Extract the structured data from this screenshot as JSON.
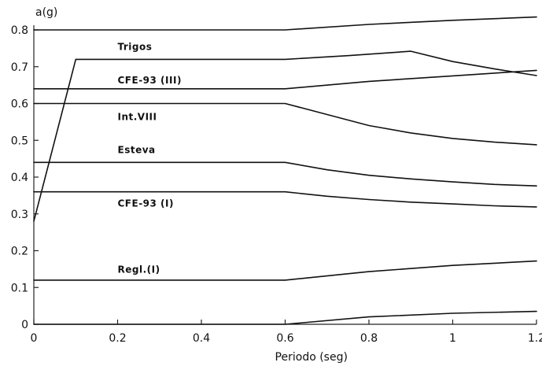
{
  "chart_data": {
    "type": "line",
    "xlabel": "Periodo (seg)",
    "ylabel": "a(g)",
    "xlim": [
      0,
      1.2
    ],
    "ylim": [
      0,
      0.8
    ],
    "xticks": [
      {
        "value": 0,
        "label": "0"
      },
      {
        "value": 0.2,
        "label": "0.2"
      },
      {
        "value": 0.4,
        "label": "0.4"
      },
      {
        "value": 0.6,
        "label": "0.6"
      },
      {
        "value": 0.8,
        "label": "0.8"
      },
      {
        "value": 1.0,
        "label": "1"
      },
      {
        "value": 1.2,
        "label": "1.2"
      }
    ],
    "yticks": [
      {
        "value": 0,
        "label": "0"
      },
      {
        "value": 0.1,
        "label": "0.1"
      },
      {
        "value": 0.2,
        "label": "0.2"
      },
      {
        "value": 0.3,
        "label": "0.3"
      },
      {
        "value": 0.4,
        "label": "0.4"
      },
      {
        "value": 0.5,
        "label": "0.5"
      },
      {
        "value": 0.6,
        "label": "0.6"
      },
      {
        "value": 0.7,
        "label": "0.7"
      },
      {
        "value": 0.8,
        "label": "0.8"
      }
    ],
    "grid": false,
    "legend": "none",
    "series": [
      {
        "key": "top",
        "x": [
          0,
          0.6,
          0.8,
          1.0,
          1.2
        ],
        "y": [
          0.8,
          0.8,
          0.815,
          0.826,
          0.835
        ]
      },
      {
        "key": "trigos",
        "name": "Trigos",
        "x": [
          0,
          0.1,
          0.6,
          0.75,
          0.9,
          1.0,
          1.1,
          1.2
        ],
        "y": [
          0.28,
          0.72,
          0.72,
          0.73,
          0.742,
          0.714,
          0.694,
          0.676
        ],
        "label_at": [
          0.2,
          0.745
        ]
      },
      {
        "key": "cfe93iii",
        "name": "CFE-93 (III)",
        "x": [
          0,
          0.6,
          0.8,
          1.0,
          1.2
        ],
        "y": [
          0.64,
          0.64,
          0.66,
          0.675,
          0.69
        ],
        "label_at": [
          0.2,
          0.655
        ]
      },
      {
        "key": "intviii",
        "name": "Int.VIII",
        "x": [
          0,
          0.6,
          0.7,
          0.8,
          0.9,
          1.0,
          1.1,
          1.2
        ],
        "y": [
          0.6,
          0.6,
          0.57,
          0.54,
          0.52,
          0.505,
          0.495,
          0.488
        ],
        "label_at": [
          0.2,
          0.555
        ]
      },
      {
        "key": "esteva",
        "name": "Esteva",
        "x": [
          0,
          0.6,
          0.7,
          0.8,
          0.9,
          1.0,
          1.1,
          1.2
        ],
        "y": [
          0.44,
          0.44,
          0.42,
          0.405,
          0.395,
          0.387,
          0.38,
          0.376
        ],
        "label_at": [
          0.2,
          0.465
        ]
      },
      {
        "key": "cfe93i",
        "name": "CFE-93 (I)",
        "x": [
          0,
          0.6,
          0.7,
          0.8,
          0.9,
          1.0,
          1.1,
          1.2
        ],
        "y": [
          0.36,
          0.36,
          0.348,
          0.339,
          0.332,
          0.327,
          0.322,
          0.319
        ],
        "label_at": [
          0.2,
          0.32
        ]
      },
      {
        "key": "reglI",
        "name": "Regl.(I)",
        "x": [
          0,
          0.6,
          0.8,
          1.0,
          1.2
        ],
        "y": [
          0.12,
          0.12,
          0.143,
          0.16,
          0.172
        ],
        "label_at": [
          0.2,
          0.14
        ]
      },
      {
        "key": "bottom",
        "x": [
          0,
          0.6,
          0.8,
          1.0,
          1.2
        ],
        "y": [
          0,
          0,
          0.02,
          0.03,
          0.035
        ]
      }
    ]
  }
}
